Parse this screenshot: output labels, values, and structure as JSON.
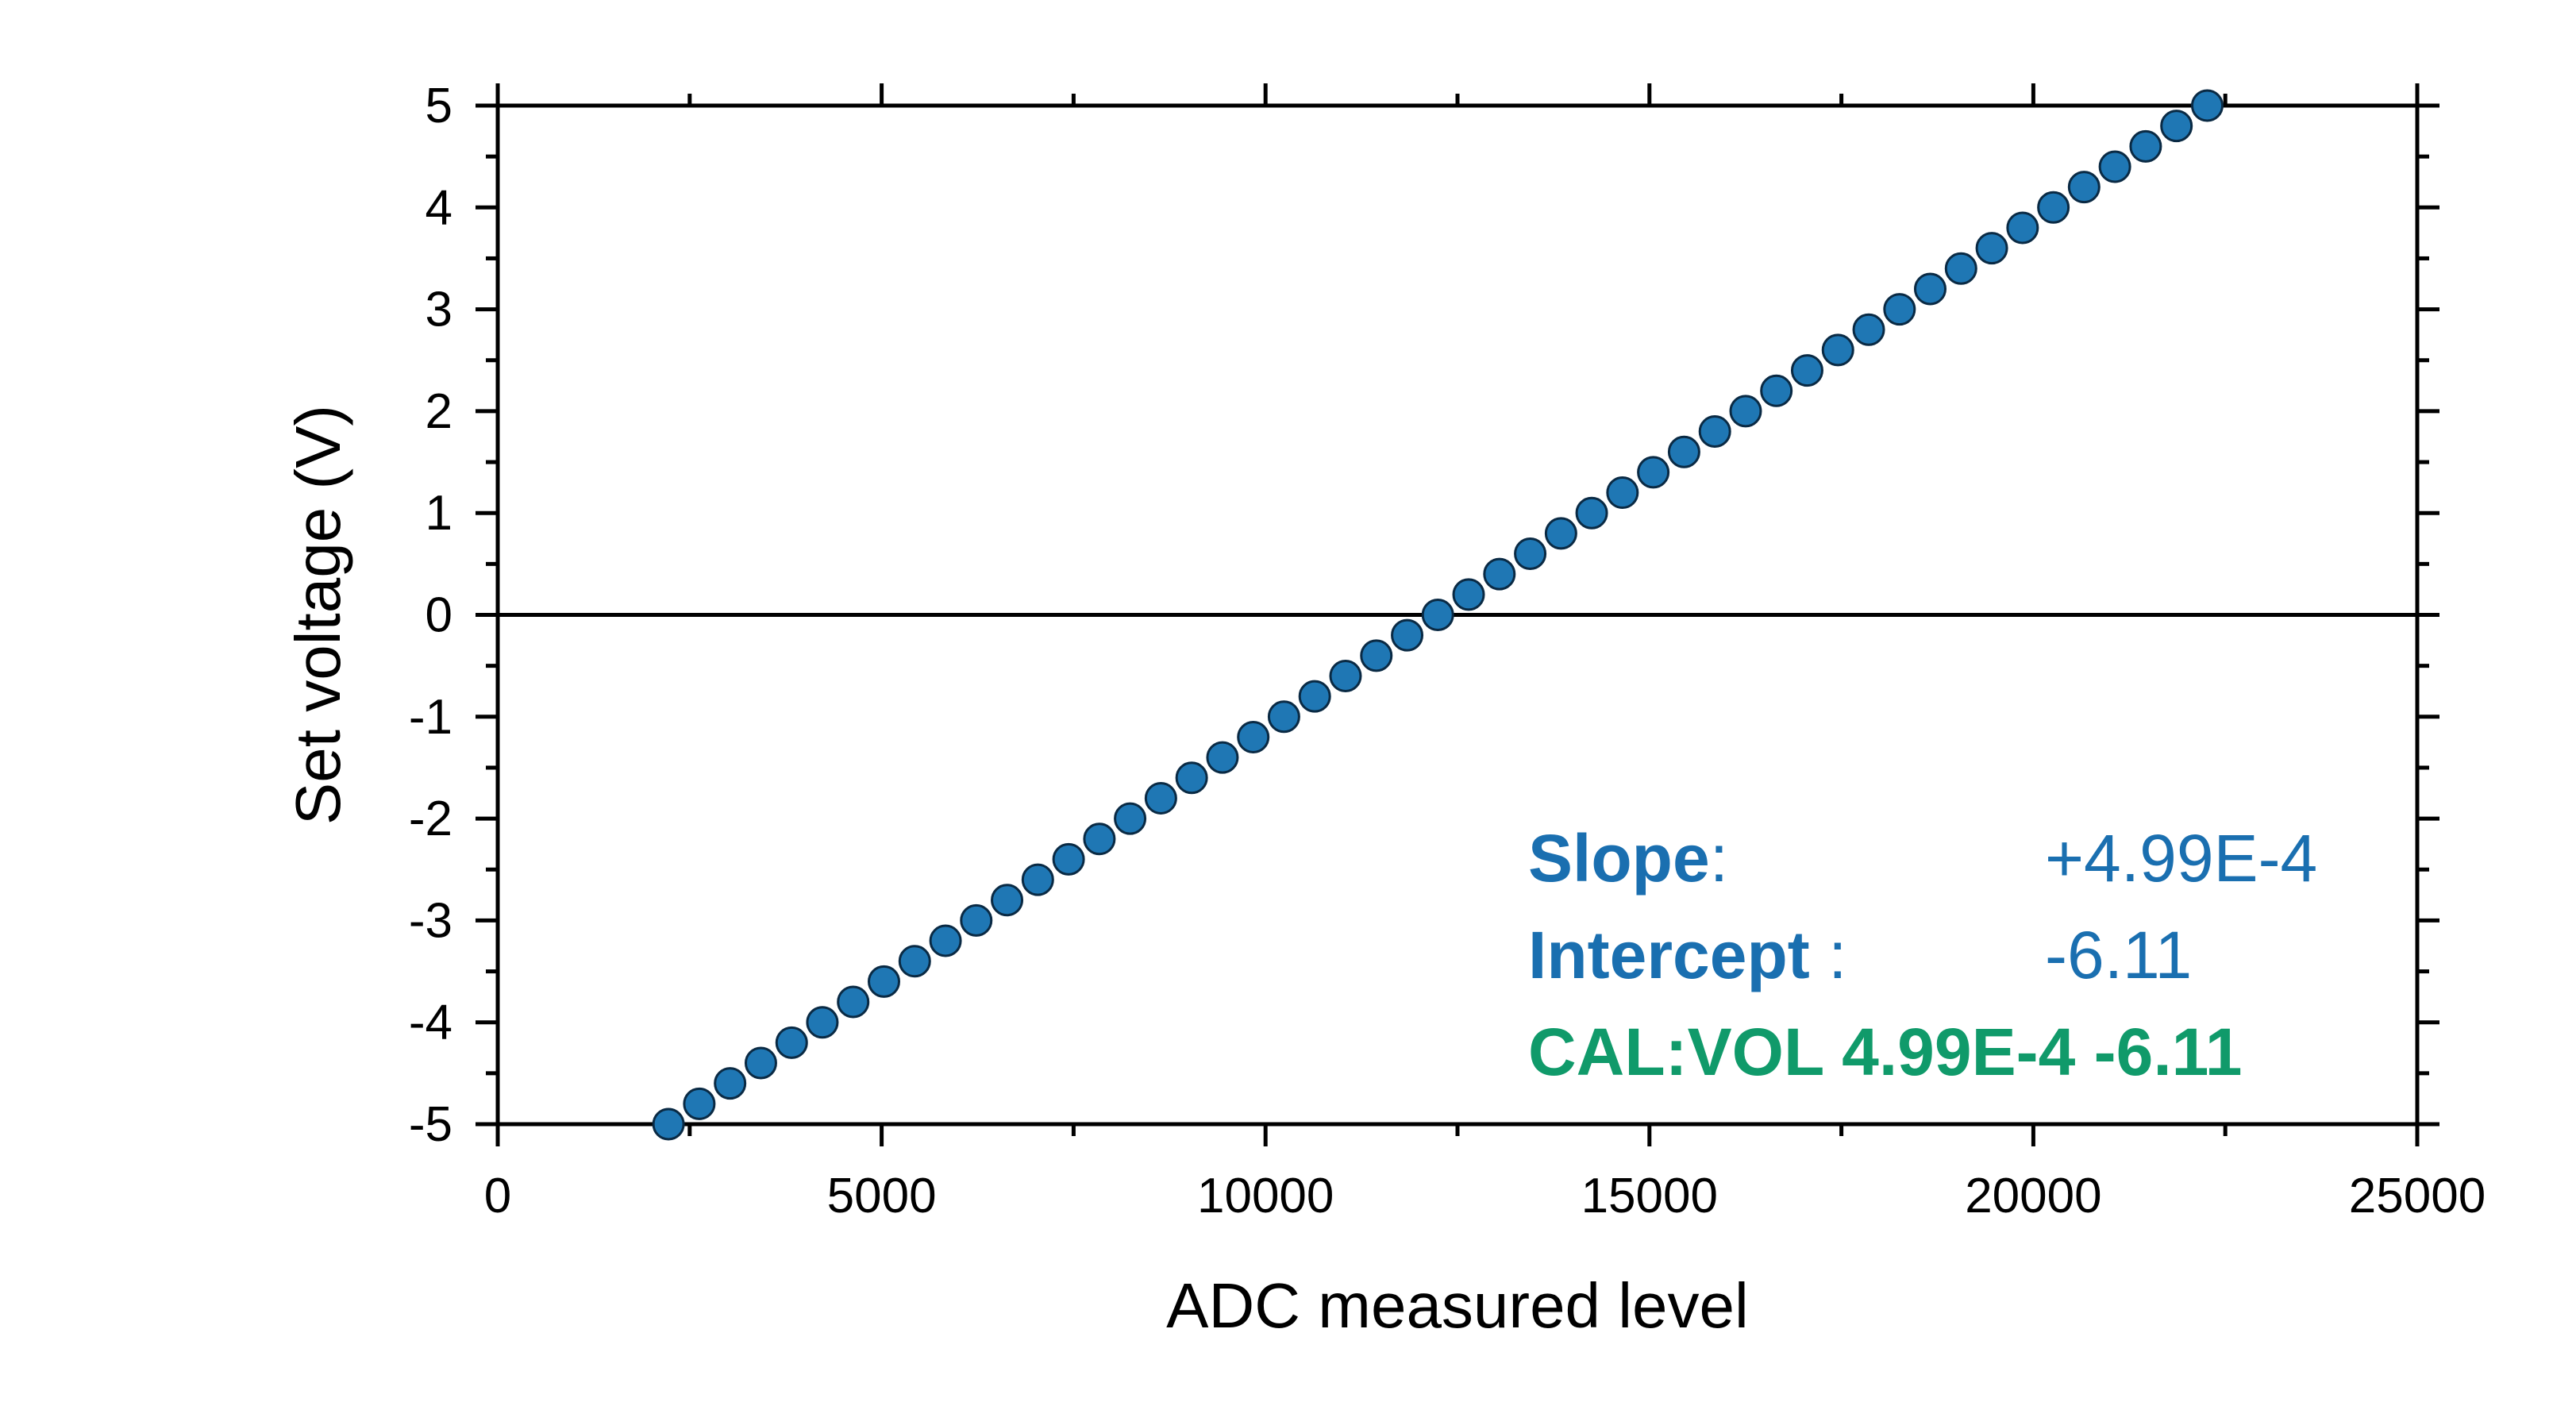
{
  "chart_data": {
    "type": "scatter",
    "xlabel": "ADC measured level",
    "ylabel": "Set voltage (V)",
    "xlim": [
      0,
      25000
    ],
    "ylim": [
      -5,
      5
    ],
    "x_ticks": [
      "0",
      "5000",
      "10000",
      "15000",
      "20000",
      "25000"
    ],
    "y_ticks": [
      "5",
      "4",
      "3",
      "2",
      "1",
      "0",
      "-1",
      "-2",
      "-3",
      "-4",
      "-5"
    ],
    "grid": false,
    "zero_line": true,
    "series": [
      {
        "marker": "circle",
        "color": "#1f77b4",
        "slope": 0.000499,
        "intercept": -6.11,
        "y": [
          -5.0,
          -4.8,
          -4.6,
          -4.4,
          -4.2,
          -4.0,
          -3.8,
          -3.6,
          -3.4,
          -3.2,
          -3.0,
          -2.8,
          -2.6,
          -2.4,
          -2.2,
          -2.0,
          -1.8,
          -1.6,
          -1.4,
          -1.2,
          -1.0,
          -0.8,
          -0.6,
          -0.4,
          -0.2,
          0.0,
          0.2,
          0.4,
          0.6,
          0.8,
          1.0,
          1.2,
          1.4,
          1.6,
          1.8,
          2.0,
          2.2,
          2.4,
          2.6,
          2.8,
          3.0,
          3.2,
          3.4,
          3.6,
          3.8,
          4.0,
          4.2,
          4.4,
          4.6,
          4.8,
          5.0
        ],
        "x": [
          2224,
          2625,
          3026,
          3427,
          3828,
          4228,
          4629,
          5030,
          5431,
          5832,
          6232,
          6633,
          7034,
          7435,
          7836,
          8236,
          8637,
          9038,
          9439,
          9840,
          10240,
          10641,
          11042,
          11443,
          11844,
          12244,
          12645,
          13046,
          13447,
          13848,
          14248,
          14649,
          15050,
          15451,
          15852,
          16253,
          16653,
          17054,
          17455,
          17856,
          18257,
          18657,
          19058,
          19459,
          19860,
          20261,
          20661,
          21062,
          21463,
          21864,
          22265
        ]
      }
    ],
    "annotations": {
      "slope_label": "Slope",
      "slope_colon": ":",
      "slope_value": "+4.99E-4",
      "intercept_label": "Intercept",
      "intercept_colon": " :",
      "intercept_value": "-6.11",
      "cal_command": "CAL:VOL 4.99E-4 -6.11",
      "blue_color": "#1a6fb0",
      "green_color": "#109a6a"
    }
  }
}
